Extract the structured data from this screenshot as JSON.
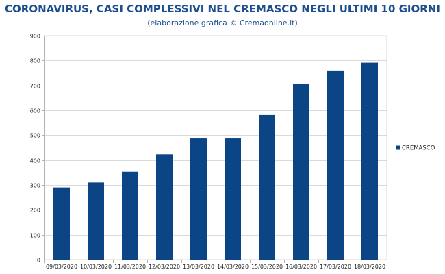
{
  "header": {
    "title": "CORONAVIRUS, CASI COMPLESSIVI NEL CREMASCO NEGLI ULTIMI 10 GIORNI",
    "subtitle": "(elaborazione grafica © Cremaonline.it)"
  },
  "colors": {
    "bar": "#0b4586",
    "grid": "#d9d9d9",
    "axis": "#b3b3b3"
  },
  "chart_data": {
    "type": "bar",
    "title": "CORONAVIRUS, CASI COMPLESSIVI NEL CREMASCO NEGLI ULTIMI 10 GIORNI",
    "subtitle": "(elaborazione grafica © Cremaonline.it)",
    "categories": [
      "09/03/2020",
      "10/03/2020",
      "11/03/2020",
      "12/03/2020",
      "13/03/2020",
      "14/03/2020",
      "15/03/2020",
      "16/03/2020",
      "17/03/2020",
      "18/03/2020"
    ],
    "series": [
      {
        "name": "CREMASCO",
        "values": [
          290,
          310,
          353,
          423,
          487,
          487,
          581,
          707,
          760,
          791
        ]
      }
    ],
    "xlabel": "",
    "ylabel": "",
    "ylim": [
      0,
      900
    ],
    "yticks": [
      0,
      100,
      200,
      300,
      400,
      500,
      600,
      700,
      800,
      900
    ],
    "grid": true,
    "legend_position": "right"
  }
}
